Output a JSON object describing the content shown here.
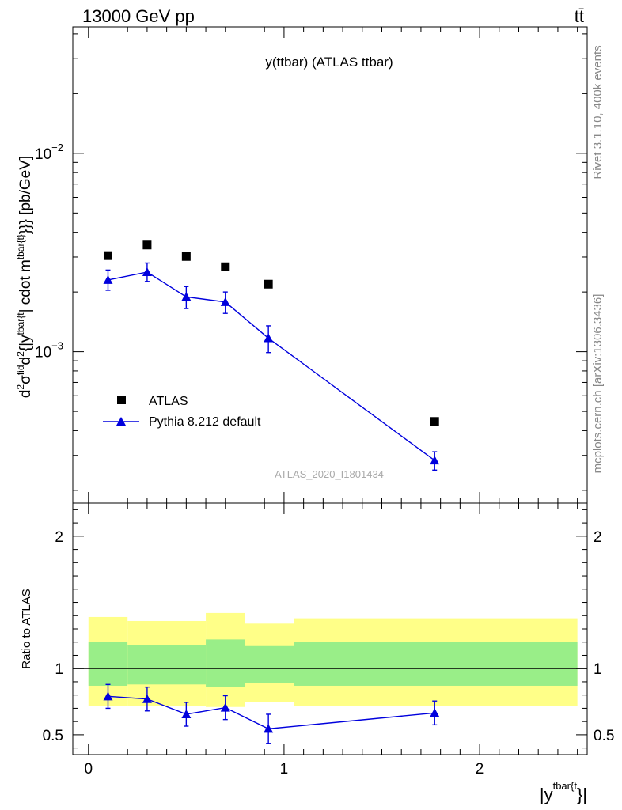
{
  "header": {
    "process": "13000 GeV pp",
    "final_state": "tt̄",
    "plot_title": "y(ttbar) (ATLAS ttbar)",
    "side_label_top": "Rivet 3.1.10,  400k events",
    "side_label_bottom": "mcplots.cern.ch [arXiv:1306.3436]",
    "analysis_id": "ATLAS_2020_I1801434"
  },
  "chart_data": [
    {
      "type": "line",
      "panel": "main",
      "ylabel": "d²σ^fid / d²{|y^tbar{t}|  cdot m^tbar{t}}} [pb/GeV]",
      "ylabel_parts": {
        "d": "d",
        "sup2": "2",
        "sigma": "σ",
        "fid": "fid",
        "den": "{|y",
        "tbar": "tbar{t",
        "rest": "| cdot m",
        "tbar2": "tbar{t}",
        "tail": "}}} [pb/GeV]"
      },
      "xlim": [
        -0.08,
        2.55
      ],
      "ylim": [
        0.0001725,
        0.0434
      ],
      "yscale": "log",
      "yticks": [
        {
          "value": 0.01,
          "base": "10",
          "exp": "−2"
        },
        {
          "value": 0.001,
          "base": "10",
          "exp": "−3"
        }
      ],
      "legend_position": "bottom-left",
      "series": [
        {
          "name": "ATLAS",
          "marker": "square",
          "color": "#000000",
          "x": [
            0.1,
            0.3,
            0.5,
            0.7,
            0.92,
            1.77
          ],
          "y": [
            0.00305,
            0.00345,
            0.00302,
            0.00268,
            0.00219,
            0.000445
          ]
        },
        {
          "name": "Pythia 8.212 default",
          "marker": "triangle",
          "color": "#0000dd",
          "x": [
            0.1,
            0.3,
            0.5,
            0.7,
            0.92,
            1.77
          ],
          "y": [
            0.0023,
            0.00252,
            0.00189,
            0.00178,
            0.00117,
            0.000283
          ],
          "yerr_low": [
            0.00026,
            0.00026,
            0.00024,
            0.00022,
            0.00018,
            3e-05
          ],
          "yerr_high": [
            0.00028,
            0.00028,
            0.00024,
            0.00022,
            0.00018,
            3e-05
          ]
        }
      ]
    },
    {
      "type": "line",
      "panel": "ratio",
      "ylabel": "Ratio to ATLAS",
      "xlabel_parts": {
        "bar": "|y",
        "sup": "tbar{t",
        "close": "}|"
      },
      "xlim": [
        -0.08,
        2.55
      ],
      "ylim": [
        0.35,
        2.25
      ],
      "yticks": [
        0.5,
        1,
        2
      ],
      "xticks": [
        0,
        1,
        2
      ],
      "reference_line": 1,
      "bands": {
        "bin_edges": [
          0,
          0.2,
          0.6,
          0.8,
          1.05,
          2.5
        ],
        "yellow_low": [
          0.72,
          0.72,
          0.71,
          0.75,
          0.72
        ],
        "yellow_high": [
          1.39,
          1.36,
          1.42,
          1.34,
          1.38
        ],
        "green_low": [
          0.87,
          0.88,
          0.86,
          0.89,
          0.87
        ],
        "green_high": [
          1.2,
          1.18,
          1.22,
          1.17,
          1.2
        ],
        "yellow_color": "#ffff88",
        "green_color": "#99ee88",
        "band_edges_x": [
          0.2,
          0.6,
          1.05,
          0.8
        ]
      },
      "series": [
        {
          "name": "Pythia 8.212 default",
          "marker": "triangle",
          "color": "#0000dd",
          "x": [
            0.1,
            0.3,
            0.5,
            0.7,
            0.92,
            1.77
          ],
          "y": [
            0.79,
            0.77,
            0.655,
            0.705,
            0.545,
            0.665
          ],
          "yerr_low": [
            0.09,
            0.09,
            0.09,
            0.09,
            0.11,
            0.09
          ],
          "yerr_high": [
            0.09,
            0.09,
            0.09,
            0.09,
            0.11,
            0.09
          ]
        }
      ]
    }
  ]
}
